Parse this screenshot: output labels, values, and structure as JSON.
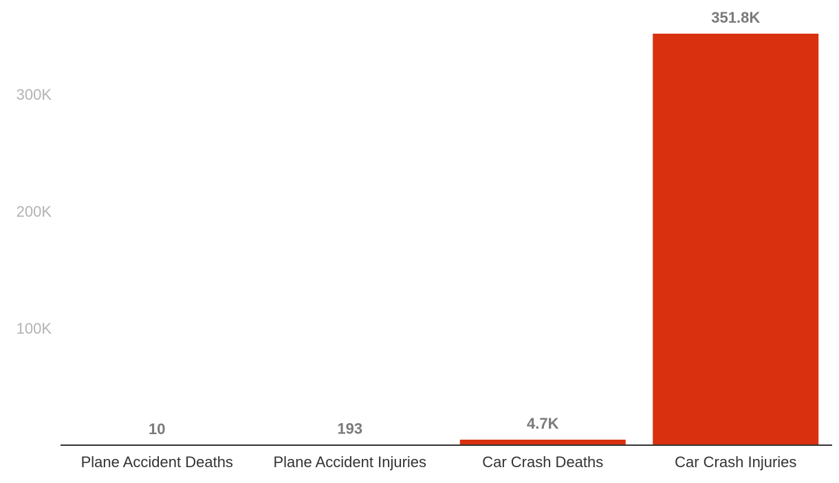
{
  "chart_data": {
    "type": "bar",
    "categories": [
      "Plane Accident Deaths",
      "Plane Accident Injuries",
      "Car Crash Deaths",
      "Car Crash Injuries"
    ],
    "values": [
      10,
      193,
      4700,
      351800
    ],
    "data_labels": [
      "10",
      "193",
      "4.7K",
      "351.8K"
    ],
    "title": "",
    "xlabel": "",
    "ylabel": "",
    "ylim": [
      0,
      370000
    ],
    "yticks": [
      100000,
      200000,
      300000
    ],
    "ytick_labels": [
      "100K",
      "200K",
      "300K"
    ],
    "grid": false,
    "legend": "none",
    "bar_color": "#d9310f",
    "baseline_color": "#333333",
    "ytick_color": "#b3b3b3",
    "data_label_color": "#7a7a7a"
  }
}
